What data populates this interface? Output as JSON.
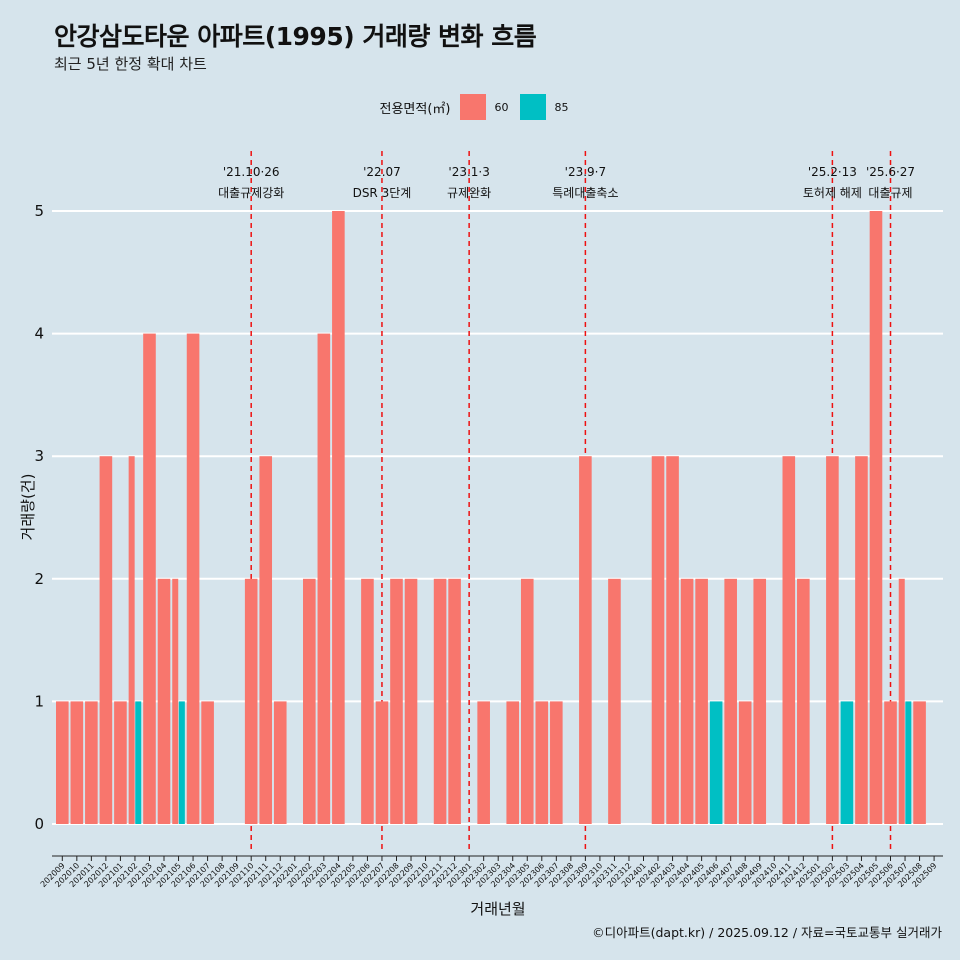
{
  "title": "안강삼도타운 아파트(1995) 거래량 변화 흐름",
  "subtitle": "최근 5년 한정 확대 차트",
  "legend": {
    "title": "전용면적(㎡)",
    "items": [
      {
        "label": "60",
        "color": "#f8766d"
      },
      {
        "label": "85",
        "color": "#00bfc4"
      }
    ]
  },
  "caption": "©디아파트(dapt.kr) / 2025.09.12 / 자료=국토교통부 실거래가",
  "chart_data": {
    "type": "bar",
    "title": "안강삼도타운 아파트(1995) 거래량 변화 흐름",
    "xlabel": "거래년월",
    "ylabel": "거래량(건)",
    "ylim": [
      0,
      5
    ],
    "yticks": [
      0,
      1,
      2,
      3,
      4,
      5
    ],
    "x_tick_labels": [
      "202009",
      "202010",
      "202011",
      "202012",
      "202101",
      "202102",
      "202103",
      "202104",
      "202105",
      "202106",
      "202107",
      "202108",
      "202109",
      "202110",
      "202111",
      "202112",
      "202201",
      "202202",
      "202203",
      "202204",
      "202205",
      "202206",
      "202207",
      "202208",
      "202209",
      "202210",
      "202211",
      "202212",
      "202301",
      "202302",
      "202303",
      "202304",
      "202305",
      "202306",
      "202307",
      "202308",
      "202309",
      "202310",
      "202311",
      "202312",
      "202401",
      "202402",
      "202403",
      "202404",
      "202405",
      "202406",
      "202407",
      "202408",
      "202409",
      "202410",
      "202411",
      "202412",
      "202501",
      "202502",
      "202503",
      "202504",
      "202505",
      "202506",
      "202507",
      "202508",
      "202509"
    ],
    "bars": [
      {
        "x": "202009",
        "area": "60",
        "value": 1
      },
      {
        "x": "202010",
        "area": "60",
        "value": 1
      },
      {
        "x": "202011",
        "area": "60",
        "value": 1
      },
      {
        "x": "202012",
        "area": "60",
        "value": 3
      },
      {
        "x": "202101",
        "area": "60",
        "value": 1
      },
      {
        "x": "202102",
        "area": "60",
        "value": 3
      },
      {
        "x": "202102",
        "area": "85",
        "value": 1
      },
      {
        "x": "202103",
        "area": "60",
        "value": 4
      },
      {
        "x": "202104",
        "area": "60",
        "value": 2
      },
      {
        "x": "202105",
        "area": "60",
        "value": 2
      },
      {
        "x": "202105",
        "area": "85",
        "value": 1
      },
      {
        "x": "202106",
        "area": "60",
        "value": 4
      },
      {
        "x": "202107",
        "area": "60",
        "value": 1
      },
      {
        "x": "202110",
        "area": "60",
        "value": 2
      },
      {
        "x": "202111",
        "area": "60",
        "value": 3
      },
      {
        "x": "202112",
        "area": "60",
        "value": 1
      },
      {
        "x": "202202",
        "area": "60",
        "value": 2
      },
      {
        "x": "202203",
        "area": "60",
        "value": 4
      },
      {
        "x": "202204",
        "area": "60",
        "value": 5
      },
      {
        "x": "202206",
        "area": "60",
        "value": 2
      },
      {
        "x": "202207",
        "area": "60",
        "value": 1
      },
      {
        "x": "202208",
        "area": "60",
        "value": 2
      },
      {
        "x": "202209",
        "area": "60",
        "value": 2
      },
      {
        "x": "202211",
        "area": "60",
        "value": 2
      },
      {
        "x": "202212",
        "area": "60",
        "value": 2
      },
      {
        "x": "202302",
        "area": "60",
        "value": 1
      },
      {
        "x": "202304",
        "area": "60",
        "value": 1
      },
      {
        "x": "202305",
        "area": "60",
        "value": 2
      },
      {
        "x": "202306",
        "area": "60",
        "value": 1
      },
      {
        "x": "202307",
        "area": "60",
        "value": 1
      },
      {
        "x": "202309",
        "area": "60",
        "value": 3
      },
      {
        "x": "202311",
        "area": "60",
        "value": 2
      },
      {
        "x": "202402",
        "area": "60",
        "value": 3
      },
      {
        "x": "202403",
        "area": "60",
        "value": 3
      },
      {
        "x": "202404",
        "area": "60",
        "value": 2
      },
      {
        "x": "202405",
        "area": "60",
        "value": 2
      },
      {
        "x": "202406",
        "area": "85",
        "value": 1
      },
      {
        "x": "202407",
        "area": "60",
        "value": 2
      },
      {
        "x": "202408",
        "area": "60",
        "value": 1
      },
      {
        "x": "202409",
        "area": "60",
        "value": 2
      },
      {
        "x": "202411",
        "area": "60",
        "value": 3
      },
      {
        "x": "202412",
        "area": "60",
        "value": 2
      },
      {
        "x": "202502",
        "area": "60",
        "value": 3
      },
      {
        "x": "202503",
        "area": "85",
        "value": 1
      },
      {
        "x": "202504",
        "area": "60",
        "value": 3
      },
      {
        "x": "202505",
        "area": "60",
        "value": 5
      },
      {
        "x": "202506",
        "area": "60",
        "value": 1
      },
      {
        "x": "202507",
        "area": "60",
        "value": 2
      },
      {
        "x": "202507",
        "area": "85",
        "value": 1
      },
      {
        "x": "202508",
        "area": "60",
        "value": 1
      }
    ],
    "events": [
      {
        "x": "202110",
        "date": "'21.10·26",
        "label": "대출규제강화"
      },
      {
        "x": "202207",
        "date": "'22.07",
        "label": "DSR 3단계"
      },
      {
        "x": "202301",
        "date": "'23.1·3",
        "label": "규제완화"
      },
      {
        "x": "202309",
        "date": "'23.9·7",
        "label": "특례대출축소"
      },
      {
        "x": "202502",
        "date": "'25.2·13",
        "label": "토허제 해제"
      },
      {
        "x": "202506",
        "date": "'25.6·27",
        "label": "대출규제"
      }
    ]
  }
}
